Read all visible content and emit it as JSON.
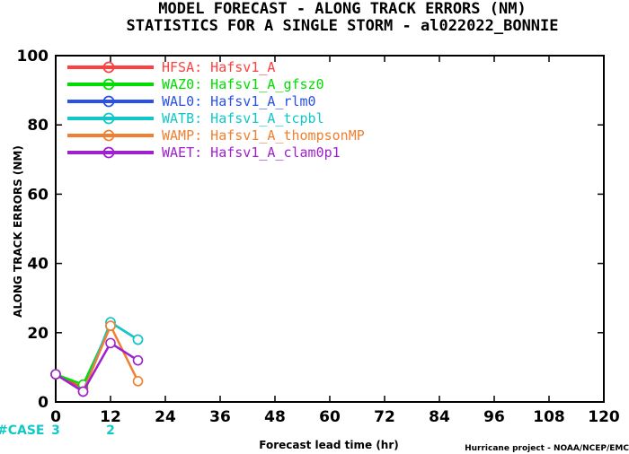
{
  "header": {
    "title_line1": "MODEL FORECAST - ALONG TRACK ERRORS (NM)",
    "title_line2": "STATISTICS FOR A SINGLE STORM - al022022_BONNIE"
  },
  "footer": {
    "credit": "Hurricane project - NOAA/NCEP/EMC"
  },
  "cases": {
    "label": "#CASE",
    "entries": [
      {
        "x": 0,
        "text": "3"
      },
      {
        "x": 12,
        "text": "2"
      }
    ],
    "color": "#10c8c8"
  },
  "chart_data": {
    "type": "line",
    "title": "MODEL FORECAST - ALONG TRACK ERRORS (NM)",
    "subtitle": "STATISTICS FOR A SINGLE STORM - al022022_BONNIE",
    "xlabel": "Forecast lead time (hr)",
    "ylabel": "ALONG TRACK ERRORS (NM)",
    "xlim": [
      0,
      120
    ],
    "ylim": [
      0,
      100
    ],
    "xticks": [
      0,
      12,
      24,
      36,
      48,
      60,
      72,
      84,
      96,
      108,
      120
    ],
    "yticks": [
      0,
      20,
      40,
      60,
      80,
      100
    ],
    "grid": false,
    "legend_position": "top-left",
    "series": [
      {
        "name": "HFSA: Hafsv1_A",
        "color": "#ff4040",
        "x": [
          0,
          6,
          12
        ],
        "y": [
          8,
          4,
          22
        ]
      },
      {
        "name": "WAZ0: Hafsv1_A_gfsz0",
        "color": "#00dd00",
        "x": [
          0,
          6,
          12
        ],
        "y": [
          8,
          5,
          22
        ]
      },
      {
        "name": "WAL0: Hafsv1_A_rlm0",
        "color": "#2a50e8",
        "x": [
          0,
          6,
          12,
          18
        ],
        "y": [
          8,
          3,
          23,
          18
        ]
      },
      {
        "name": "WATB: Hafsv1_A_tcpbl",
        "color": "#10c8c8",
        "x": [
          0,
          6,
          12,
          18
        ],
        "y": [
          8,
          3,
          23,
          18
        ]
      },
      {
        "name": "WAMP: Hafsv1_A_thompsonMP",
        "color": "#f08030",
        "x": [
          0,
          6,
          12,
          18
        ],
        "y": [
          8,
          3,
          22,
          6
        ]
      },
      {
        "name": "WAET: Hafsv1_A_clam0p1",
        "color": "#a020d0",
        "x": [
          0,
          6,
          12,
          18
        ],
        "y": [
          8,
          3,
          17,
          12
        ]
      }
    ]
  }
}
